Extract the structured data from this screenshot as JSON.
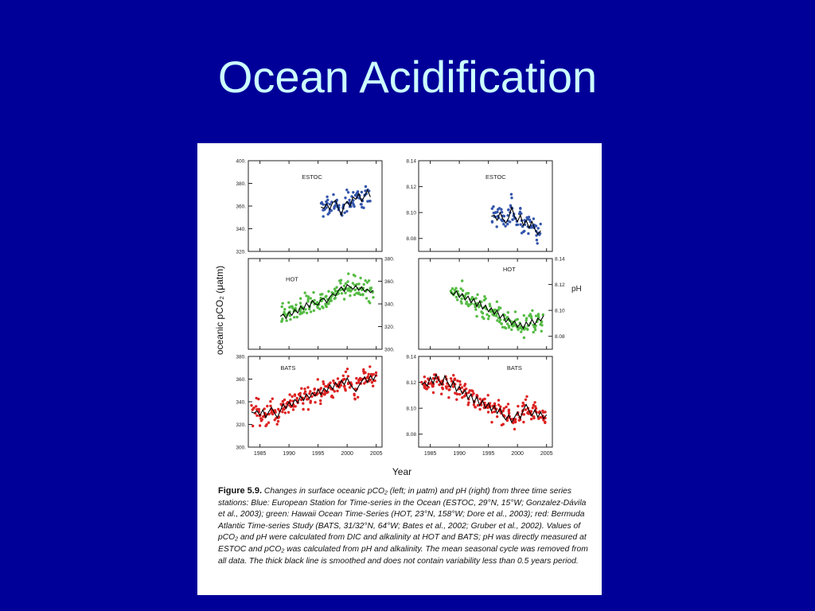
{
  "slide": {
    "title": "Ocean Acidification"
  },
  "figure": {
    "label": "Figure 5.9.",
    "caption": "Changes in surface oceanic pCO₂ (left; in μatm) and pH (right) from three time series stations: Blue: European Station for Time-series in the Ocean (ESTOC, 29°N, 15°W; Gonzalez-Dávila et al., 2003); green: Hawaii Ocean Time-Series (HOT, 23°N, 158°W; Dore et al., 2003); red: Bermuda Atlantic Time-series Study (BATS, 31/32°N, 64°W; Bates et al., 2002; Gruber et al., 2002). Values of pCO₂ and pH were calculated from DIC and alkalinity at HOT and BATS; pH was directly measured at ESTOC and pCO₂ was calculated from pH and alkalinity. The mean seasonal cycle was removed from all data. The thick black line is smoothed and does not contain variability less than 0.5 years period."
  },
  "chart_data": [
    {
      "type": "scatter",
      "station": "ESTOC",
      "variable": "pCO2",
      "color": "#3355aa",
      "xlim": [
        1983,
        2006
      ],
      "ylim": [
        320,
        400
      ],
      "yticks": [
        "320.",
        "340.",
        "360.",
        "380.",
        "400."
      ],
      "yaxis_side": "left",
      "trend": [
        [
          1995.5,
          359
        ],
        [
          1996,
          358
        ],
        [
          1996.5,
          362
        ],
        [
          1997,
          357
        ],
        [
          1997.5,
          363
        ],
        [
          1998,
          365
        ],
        [
          1998.5,
          358
        ],
        [
          1999,
          352
        ],
        [
          1999.5,
          361
        ],
        [
          2000,
          364
        ],
        [
          2000.5,
          360
        ],
        [
          2001,
          368
        ],
        [
          2001.5,
          366
        ],
        [
          2002,
          371
        ],
        [
          2002.5,
          364
        ],
        [
          2003,
          369
        ],
        [
          2003.5,
          374
        ],
        [
          2004,
          368
        ]
      ]
    },
    {
      "type": "scatter",
      "station": "HOT",
      "variable": "pCO2",
      "color": "#55bb44",
      "xlim": [
        1983,
        2006
      ],
      "ylim": [
        300,
        380
      ],
      "yticks": [
        "300.",
        "320.",
        "340.",
        "360.",
        "380."
      ],
      "yaxis_side": "right",
      "trend": [
        [
          1988.5,
          329
        ],
        [
          1989,
          331
        ],
        [
          1989.5,
          327
        ],
        [
          1990,
          333
        ],
        [
          1990.5,
          330
        ],
        [
          1991,
          335
        ],
        [
          1991.5,
          332
        ],
        [
          1992,
          338
        ],
        [
          1992.5,
          335
        ],
        [
          1993,
          341
        ],
        [
          1993.5,
          337
        ],
        [
          1994,
          343
        ],
        [
          1994.5,
          340
        ],
        [
          1995,
          339
        ],
        [
          1995.5,
          344
        ],
        [
          1996,
          345
        ],
        [
          1996.5,
          341
        ],
        [
          1997,
          346
        ],
        [
          1997.5,
          349
        ],
        [
          1998,
          347
        ],
        [
          1998.5,
          352
        ],
        [
          1999,
          355
        ],
        [
          1999.5,
          351
        ],
        [
          2000,
          357
        ],
        [
          2000.5,
          355
        ],
        [
          2001,
          353
        ],
        [
          2001.5,
          356
        ],
        [
          2002,
          352
        ],
        [
          2002.5,
          355
        ],
        [
          2003,
          351
        ],
        [
          2003.5,
          353
        ],
        [
          2004,
          350
        ],
        [
          2004.5,
          352
        ]
      ]
    },
    {
      "type": "scatter",
      "station": "BATS",
      "variable": "pCO2",
      "color": "#dd2222",
      "xlim": [
        1983,
        2006
      ],
      "ylim": [
        300,
        380
      ],
      "yticks": [
        "300.",
        "320.",
        "340.",
        "360.",
        "380."
      ],
      "yaxis_side": "left",
      "xticks": [
        "1985",
        "1990",
        "1995",
        "2000",
        "2005"
      ],
      "trend": [
        [
          1983.5,
          331
        ],
        [
          1984,
          330
        ],
        [
          1984.5,
          332
        ],
        [
          1985,
          328
        ],
        [
          1985.5,
          333
        ],
        [
          1986,
          326
        ],
        [
          1986.5,
          331
        ],
        [
          1987,
          335
        ],
        [
          1987.5,
          330
        ],
        [
          1988,
          326
        ],
        [
          1988.5,
          332
        ],
        [
          1989,
          338
        ],
        [
          1989.5,
          334
        ],
        [
          1990,
          340
        ],
        [
          1990.5,
          336
        ],
        [
          1991,
          342
        ],
        [
          1991.5,
          339
        ],
        [
          1992,
          345
        ],
        [
          1992.5,
          341
        ],
        [
          1993,
          347
        ],
        [
          1993.5,
          343
        ],
        [
          1994,
          348
        ],
        [
          1994.5,
          345
        ],
        [
          1995,
          351
        ],
        [
          1995.5,
          346
        ],
        [
          1996,
          352
        ],
        [
          1996.5,
          349
        ],
        [
          1997,
          355
        ],
        [
          1997.5,
          351
        ],
        [
          1998,
          357
        ],
        [
          1998.5,
          353
        ],
        [
          1999,
          359
        ],
        [
          1999.5,
          355
        ],
        [
          2000,
          361
        ],
        [
          2000.5,
          356
        ],
        [
          2001,
          352
        ],
        [
          2001.5,
          349
        ],
        [
          2002,
          354
        ],
        [
          2002.5,
          358
        ],
        [
          2003,
          362
        ],
        [
          2003.5,
          357
        ],
        [
          2004,
          363
        ],
        [
          2004.5,
          359
        ],
        [
          2005,
          364
        ]
      ]
    },
    {
      "type": "scatter",
      "station": "ESTOC",
      "variable": "pH",
      "color": "#3355aa",
      "xlim": [
        1983,
        2006
      ],
      "ylim": [
        8.07,
        8.14
      ],
      "yticks": [
        "8.08",
        "8.10",
        "8.12",
        "8.14"
      ],
      "yaxis_side": "left",
      "trend": [
        [
          1995.5,
          8.097
        ],
        [
          1996,
          8.098
        ],
        [
          1996.5,
          8.094
        ],
        [
          1997,
          8.1
        ],
        [
          1997.5,
          8.095
        ],
        [
          1998,
          8.092
        ],
        [
          1998.5,
          8.096
        ],
        [
          1999,
          8.104
        ],
        [
          1999.5,
          8.097
        ],
        [
          2000,
          8.093
        ],
        [
          2000.5,
          8.098
        ],
        [
          2001,
          8.09
        ],
        [
          2001.5,
          8.094
        ],
        [
          2002,
          8.088
        ],
        [
          2002.5,
          8.093
        ],
        [
          2003,
          8.087
        ],
        [
          2003.5,
          8.083
        ],
        [
          2004,
          8.086
        ]
      ]
    },
    {
      "type": "scatter",
      "station": "HOT",
      "variable": "pH",
      "color": "#55bb44",
      "xlim": [
        1983,
        2006
      ],
      "ylim": [
        8.07,
        8.14
      ],
      "yticks": [
        "8.08",
        "8.10",
        "8.12",
        "8.14"
      ],
      "yaxis_side": "right",
      "ylabel": "pH",
      "trend": [
        [
          1988.5,
          8.114
        ],
        [
          1989,
          8.112
        ],
        [
          1989.5,
          8.115
        ],
        [
          1990,
          8.11
        ],
        [
          1990.5,
          8.113
        ],
        [
          1991,
          8.108
        ],
        [
          1991.5,
          8.111
        ],
        [
          1992,
          8.106
        ],
        [
          1992.5,
          8.109
        ],
        [
          1993,
          8.103
        ],
        [
          1993.5,
          8.107
        ],
        [
          1994,
          8.101
        ],
        [
          1994.5,
          8.104
        ],
        [
          1995,
          8.099
        ],
        [
          1995.5,
          8.102
        ],
        [
          1996,
          8.097
        ],
        [
          1996.5,
          8.1
        ],
        [
          1997,
          8.094
        ],
        [
          1997.5,
          8.097
        ],
        [
          1998,
          8.091
        ],
        [
          1998.5,
          8.094
        ],
        [
          1999,
          8.089
        ],
        [
          1999.5,
          8.092
        ],
        [
          2000,
          8.087
        ],
        [
          2000.5,
          8.09
        ],
        [
          2001,
          8.086
        ],
        [
          2001.5,
          8.091
        ],
        [
          2002,
          8.088
        ],
        [
          2002.5,
          8.093
        ],
        [
          2003,
          8.089
        ],
        [
          2003.5,
          8.094
        ],
        [
          2004,
          8.092
        ],
        [
          2004.5,
          8.096
        ]
      ]
    },
    {
      "type": "scatter",
      "station": "BATS",
      "variable": "pH",
      "color": "#dd2222",
      "xlim": [
        1983,
        2006
      ],
      "ylim": [
        8.07,
        8.14
      ],
      "yticks": [
        "8.08",
        "8.10",
        "8.12",
        "8.14"
      ],
      "yaxis_side": "left",
      "xticks": [
        "1985",
        "1990",
        "1995",
        "2000",
        "2005"
      ],
      "trend": [
        [
          1983.5,
          8.118
        ],
        [
          1984,
          8.12
        ],
        [
          1984.5,
          8.117
        ],
        [
          1985,
          8.124
        ],
        [
          1985.5,
          8.119
        ],
        [
          1986,
          8.126
        ],
        [
          1986.5,
          8.121
        ],
        [
          1987,
          8.118
        ],
        [
          1987.5,
          8.125
        ],
        [
          1988,
          8.12
        ],
        [
          1988.5,
          8.116
        ],
        [
          1989,
          8.121
        ],
        [
          1989.5,
          8.113
        ],
        [
          1990,
          8.117
        ],
        [
          1990.5,
          8.111
        ],
        [
          1991,
          8.114
        ],
        [
          1991.5,
          8.107
        ],
        [
          1992,
          8.111
        ],
        [
          1992.5,
          8.104
        ],
        [
          1993,
          8.109
        ],
        [
          1993.5,
          8.102
        ],
        [
          1994,
          8.106
        ],
        [
          1994.5,
          8.1
        ],
        [
          1995,
          8.104
        ],
        [
          1995.5,
          8.098
        ],
        [
          1996,
          8.102
        ],
        [
          1996.5,
          8.096
        ],
        [
          1997,
          8.1
        ],
        [
          1997.5,
          8.094
        ],
        [
          1998,
          8.091
        ],
        [
          1998.5,
          8.095
        ],
        [
          1999,
          8.089
        ],
        [
          1999.5,
          8.093
        ],
        [
          2000,
          8.097
        ],
        [
          2000.5,
          8.092
        ],
        [
          2001,
          8.099
        ],
        [
          2001.5,
          8.103
        ],
        [
          2002,
          8.098
        ],
        [
          2002.5,
          8.094
        ],
        [
          2003,
          8.099
        ],
        [
          2003.5,
          8.093
        ],
        [
          2004,
          8.097
        ],
        [
          2004.5,
          8.092
        ],
        [
          2005,
          8.095
        ]
      ]
    }
  ],
  "axes": {
    "xlabel": "Year",
    "left_ylabel": "oceanic pCO₂ (μatm)"
  }
}
